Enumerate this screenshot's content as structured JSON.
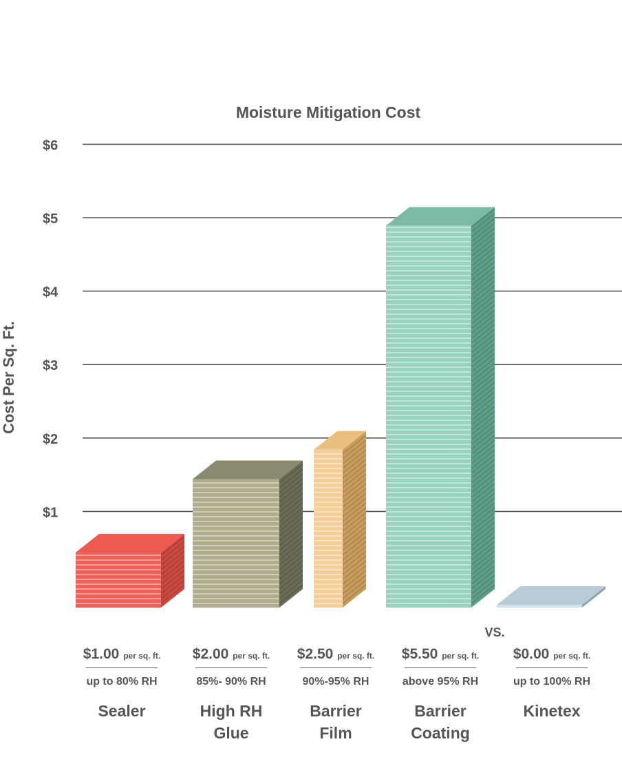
{
  "chart_data": {
    "type": "bar",
    "title": "Moisture Mitigation Cost",
    "ylabel": "Cost Per Sq. Ft.",
    "xlabel": "",
    "ylim": [
      0,
      6
    ],
    "ytick_labels": [
      "$1",
      "$2",
      "$3",
      "$4",
      "$5",
      "$6"
    ],
    "grid": true,
    "categories": [
      {
        "name": "Sealer",
        "name_lines": [
          "Sealer"
        ],
        "price": "$1.00",
        "unit": "per sq. ft.",
        "range": "up to 80% RH",
        "value": 0.75,
        "color": "#ef5f57",
        "side": "#c94840",
        "top": "#ee5a52"
      },
      {
        "name": "High RH Glue",
        "name_lines": [
          "High RH",
          "Glue"
        ],
        "price": "$2.00",
        "unit": "per sq. ft.",
        "range": "85%- 90% RH",
        "value": 1.75,
        "color": "#b0ac8c",
        "side": "#6b6a55",
        "top": "#8b8a70"
      },
      {
        "name": "Barrier Film",
        "name_lines": [
          "Barrier",
          "Film"
        ],
        "price": "$2.50",
        "unit": "per sq. ft.",
        "range": "90%-95% RH",
        "value": 2.15,
        "color": "#f4cf97",
        "side": "#c79c5c",
        "top": "#e9bf7e"
      },
      {
        "name": "Barrier Coating",
        "name_lines": [
          "Barrier",
          "Coating"
        ],
        "price": "$5.50",
        "unit": "per sq. ft.",
        "range": "above 95% RH",
        "value": 5.2,
        "color": "#97d3c0",
        "side": "#5c9e89",
        "top": "#7dbaa6"
      },
      {
        "name": "Kinetex",
        "name_lines": [
          "Kinetex"
        ],
        "price": "$0.00",
        "unit": "per sq. ft.",
        "range": "up to 100% RH",
        "value": 0.0,
        "color": "#cfe3ea",
        "side": "#8aa3ad",
        "top": "#b9ccd6"
      }
    ],
    "vs_label": "VS."
  }
}
